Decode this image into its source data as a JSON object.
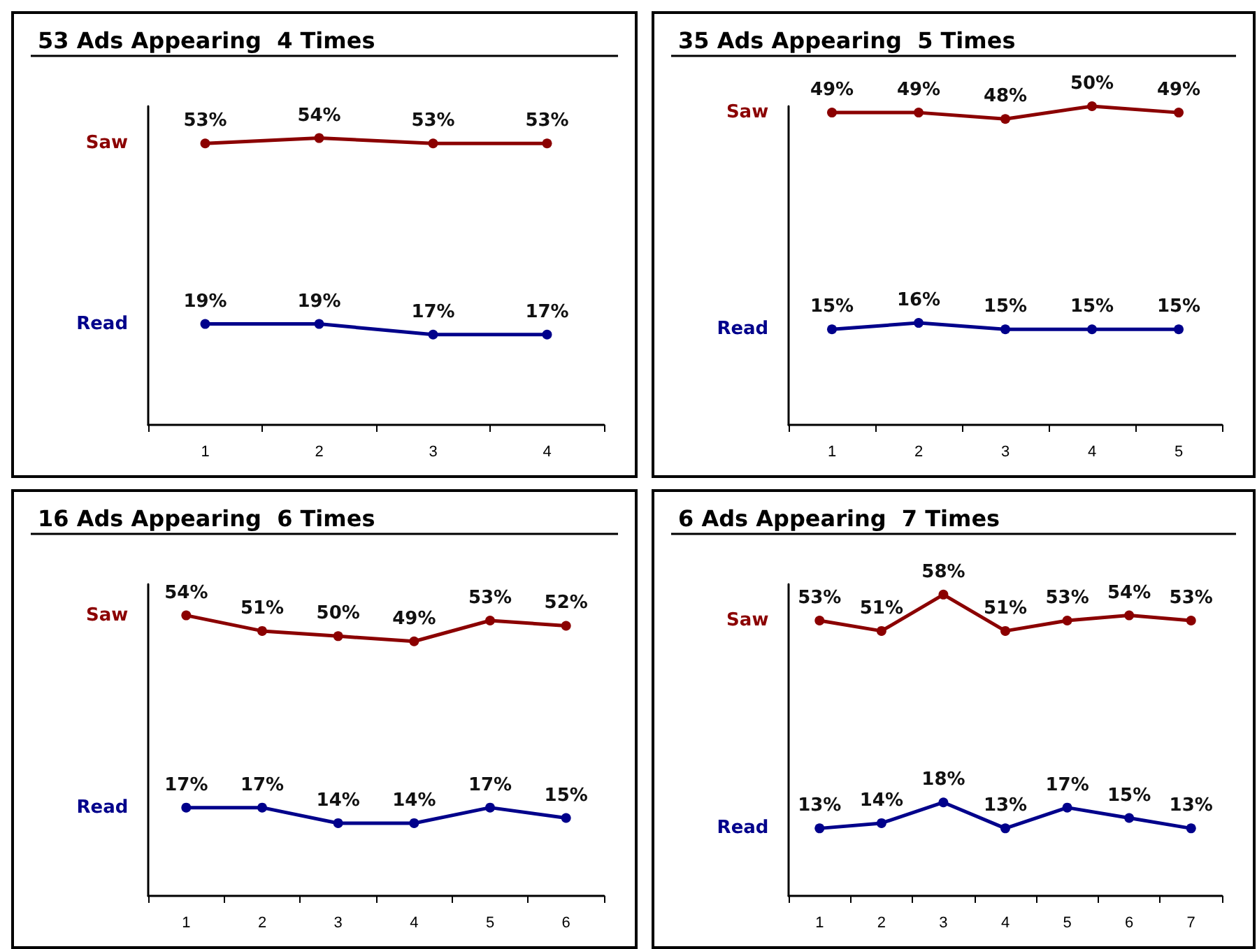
{
  "chart_data": [
    {
      "type": "line",
      "title": "53 Ads Appearing  4 Times",
      "categories": [
        "1",
        "2",
        "3",
        "4"
      ],
      "marker": "circle",
      "grid": false,
      "legend": false,
      "tick_labels": "x",
      "series": [
        {
          "name": "Saw",
          "color": "#8b0000",
          "values": [
            53,
            54,
            53,
            53
          ],
          "value_labels": [
            "53%",
            "54%",
            "53%",
            "53%"
          ]
        },
        {
          "name": "Read",
          "color": "#00008b",
          "values": [
            19,
            19,
            17,
            17
          ],
          "value_labels": [
            "19%",
            "19%",
            "17%",
            "17%"
          ]
        }
      ]
    },
    {
      "type": "line",
      "title": "35 Ads Appearing  5 Times",
      "categories": [
        "1",
        "2",
        "3",
        "4",
        "5"
      ],
      "marker": "circle",
      "grid": false,
      "legend": false,
      "tick_labels": "x",
      "series": [
        {
          "name": "Saw",
          "color": "#8b0000",
          "values": [
            49,
            49,
            48,
            50,
            49
          ],
          "value_labels": [
            "49%",
            "49%",
            "48%",
            "50%",
            "49%"
          ]
        },
        {
          "name": "Read",
          "color": "#00008b",
          "values": [
            15,
            16,
            15,
            15,
            15
          ],
          "value_labels": [
            "15%",
            "16%",
            "15%",
            "15%",
            "15%"
          ]
        }
      ]
    },
    {
      "type": "line",
      "title": "16 Ads Appearing  6 Times",
      "categories": [
        "1",
        "2",
        "3",
        "4",
        "5",
        "6"
      ],
      "marker": "circle",
      "grid": false,
      "legend": false,
      "tick_labels": "x",
      "series": [
        {
          "name": "Saw",
          "color": "#8b0000",
          "values": [
            54,
            51,
            50,
            49,
            53,
            52
          ],
          "value_labels": [
            "54%",
            "51%",
            "50%",
            "49%",
            "53%",
            "52%"
          ]
        },
        {
          "name": "Read",
          "color": "#00008b",
          "values": [
            17,
            17,
            14,
            14,
            17,
            15
          ],
          "value_labels": [
            "17%",
            "17%",
            "14%",
            "14%",
            "17%",
            "15%"
          ]
        }
      ]
    },
    {
      "type": "line",
      "title": "6 Ads Appearing  7 Times",
      "categories": [
        "1",
        "2",
        "3",
        "4",
        "5",
        "6",
        "7"
      ],
      "marker": "circle",
      "grid": false,
      "legend": false,
      "tick_labels": "x",
      "series": [
        {
          "name": "Saw",
          "color": "#8b0000",
          "values": [
            53,
            51,
            58,
            51,
            53,
            54,
            53
          ],
          "value_labels": [
            "53%",
            "51%",
            "58%",
            "51%",
            "53%",
            "54%",
            "53%"
          ]
        },
        {
          "name": "Read",
          "color": "#00008b",
          "values": [
            13,
            14,
            18,
            13,
            17,
            15,
            13
          ],
          "value_labels": [
            "13%",
            "14%",
            "18%",
            "13%",
            "17%",
            "15%",
            "13%"
          ]
        }
      ]
    }
  ]
}
